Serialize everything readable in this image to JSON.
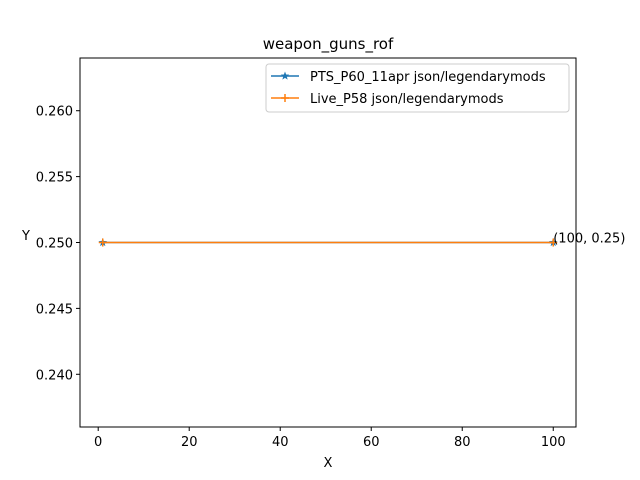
{
  "chart_data": {
    "type": "line",
    "title": "weapon_guns_rof",
    "xlabel": "X",
    "ylabel": "Y",
    "xlim": [
      -4,
      105
    ],
    "ylim": [
      0.236,
      0.264
    ],
    "x_ticks": [
      0,
      20,
      40,
      60,
      80,
      100
    ],
    "x_tick_labels": [
      "0",
      "20",
      "40",
      "60",
      "80",
      "100"
    ],
    "y_ticks": [
      0.24,
      0.245,
      0.25,
      0.255,
      0.26
    ],
    "y_tick_labels": [
      "0.240",
      "0.245",
      "0.250",
      "0.255",
      "0.260"
    ],
    "grid": false,
    "legend_position": "top-right",
    "series": [
      {
        "name": "PTS_P60_11apr json/legendarymods",
        "color": "#1f77b4",
        "marker": "star",
        "x": [
          1,
          100
        ],
        "y": [
          0.25,
          0.25
        ]
      },
      {
        "name": "Live_P58 json/legendarymods",
        "color": "#ff7f0e",
        "marker": "plus",
        "x": [
          1,
          100
        ],
        "y": [
          0.25,
          0.25
        ]
      }
    ],
    "annotations": [
      {
        "text": "(100, 0.25)",
        "x": 100,
        "y": 0.25
      }
    ]
  }
}
